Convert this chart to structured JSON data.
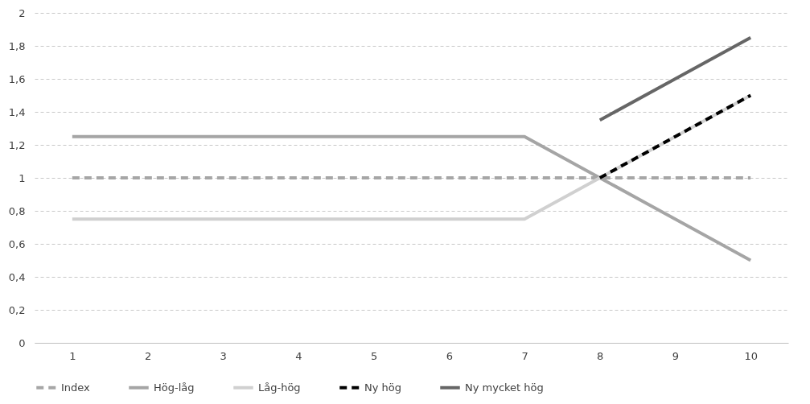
{
  "chart_data": {
    "type": "line",
    "categories": [
      "1",
      "2",
      "3",
      "4",
      "5",
      "6",
      "7",
      "8",
      "9",
      "10"
    ],
    "series": [
      {
        "name": "Index",
        "color": "#a6a6a6",
        "line_style": "dashed",
        "values": [
          1,
          1,
          1,
          1,
          1,
          1,
          1,
          1,
          1,
          1
        ]
      },
      {
        "name": "Hög-låg",
        "color": "#a5a5a5",
        "line_style": "solid",
        "values": [
          1.25,
          1.25,
          1.25,
          1.25,
          1.25,
          1.25,
          1.25,
          1,
          0.75,
          0.5
        ]
      },
      {
        "name": "Låg-hög",
        "color": "#d0d0d0",
        "line_style": "solid",
        "values": [
          0.75,
          0.75,
          0.75,
          0.75,
          0.75,
          0.75,
          0.75,
          1,
          1.25,
          1.5
        ]
      },
      {
        "name": "Ny hög",
        "color": "#000000",
        "line_style": "dashed",
        "values": [
          null,
          null,
          null,
          null,
          null,
          null,
          null,
          1,
          1.25,
          1.5
        ]
      },
      {
        "name": "Ny mycket hög",
        "color": "#666666",
        "line_style": "solid",
        "values": [
          null,
          null,
          null,
          null,
          null,
          null,
          null,
          1.35,
          1.6,
          1.85
        ]
      }
    ],
    "ylim": [
      0,
      2
    ],
    "yticks": [
      0,
      {
        "value": 0.2,
        "label": "0,2"
      },
      {
        "value": 0.4,
        "label": "0,4"
      },
      {
        "value": 0.6,
        "label": "0,6"
      },
      {
        "value": 0.8,
        "label": "0,8"
      },
      1,
      {
        "value": 1.2,
        "label": "1,2"
      },
      {
        "value": 1.4,
        "label": "1,4"
      },
      {
        "value": 1.6,
        "label": "1,6"
      },
      {
        "value": 1.8,
        "label": "1,8"
      },
      2
    ],
    "grid": "y",
    "legend": "bottom",
    "marker": "none"
  }
}
